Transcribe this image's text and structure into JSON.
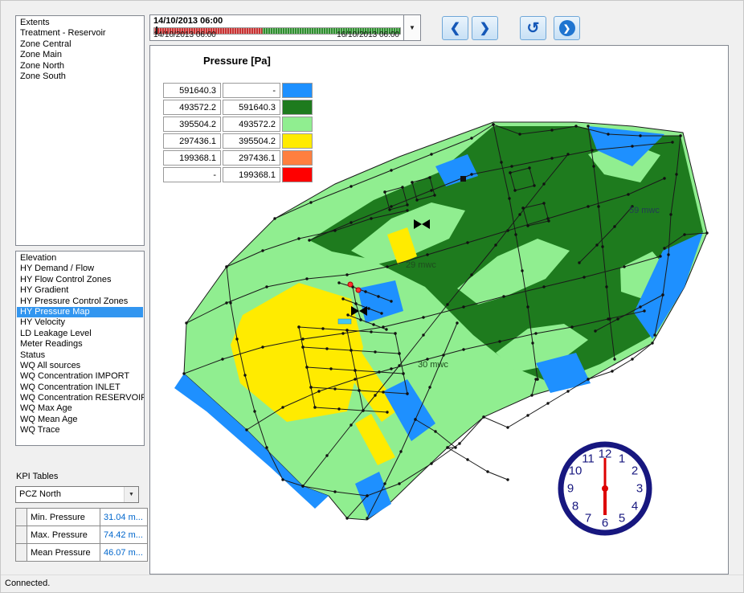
{
  "window": {
    "status_bar": {
      "text": "Connected."
    }
  },
  "extents_panel": {
    "items": [
      "Extents",
      "Treatment - Reservoir",
      "Zone Central",
      "Zone Main",
      "Zone North",
      "Zone South"
    ]
  },
  "timeline": {
    "current_label": "14/10/2013 06:00",
    "start_label": "14/10/2013 06:00",
    "end_label": "16/10/2013 06:00",
    "dropdown_glyph": "▼",
    "bar_colors": {
      "past": "#c83232",
      "future": "#2f8f2f"
    }
  },
  "toolbar": {
    "prev_glyph": "❮",
    "next_glyph": "❯",
    "reset_glyph": "↺",
    "play_glyph": "❯"
  },
  "layers_panel": {
    "items": [
      "Elevation",
      "HY Demand / Flow",
      "HY Flow Control Zones",
      "HY Gradient",
      "HY Pressure Control Zones",
      "HY Pressure Map",
      "HY Velocity",
      "LD Leakage Level",
      "Meter Readings",
      "Status",
      "WQ All sources",
      "WQ Concentration IMPORT",
      "WQ Concentration INLET",
      "WQ Concentration RESERVOIR",
      "WQ Max Age",
      "WQ Mean Age",
      "WQ Trace"
    ],
    "selected": "HY Pressure Map"
  },
  "kpi_panel": {
    "title": "KPI Tables",
    "zone_selector": {
      "value": "PCZ North",
      "glyph": "▼"
    },
    "table": {
      "rows": [
        {
          "label": "Min. Pressure",
          "value": "31.04 m..."
        },
        {
          "label": "Max. Pressure",
          "value": "74.42 m..."
        },
        {
          "label": "Mean Pressure",
          "value": "46.07 m..."
        }
      ]
    }
  },
  "map": {
    "title": "Pressure [Pa]",
    "legend": {
      "rows": [
        {
          "min": "591640.3",
          "max": "-",
          "color": "#1e90ff"
        },
        {
          "min": "493572.2",
          "max": "591640.3",
          "color": "#1e7b1e"
        },
        {
          "min": "395504.2",
          "max": "493572.2",
          "color": "#90ee90"
        },
        {
          "min": "297436.1",
          "max": "395504.2",
          "color": "#ffeb00"
        },
        {
          "min": "199368.1",
          "max": "297436.1",
          "color": "#ff7f3f"
        },
        {
          "min": "-",
          "max": "199368.1",
          "color": "#ff0000"
        }
      ]
    },
    "labels": [
      {
        "text": "59 mwc"
      },
      {
        "text": "29 mwc"
      },
      {
        "text": "30 mwc"
      }
    ],
    "clock": {
      "time": "06:00",
      "numbers": [
        "12",
        "1",
        "2",
        "3",
        "4",
        "5",
        "6",
        "7",
        "8",
        "9",
        "10",
        "11"
      ]
    }
  }
}
